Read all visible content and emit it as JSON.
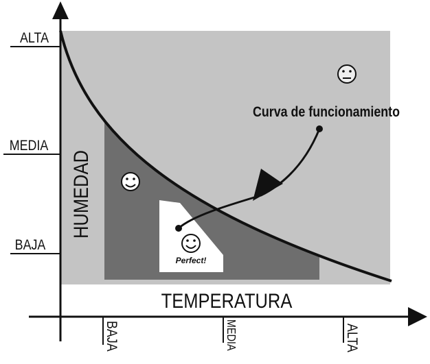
{
  "y_axis": {
    "title": "HUMEDAD",
    "labels": [
      "ALTA",
      "MEDIA",
      "BAJA"
    ]
  },
  "x_axis": {
    "title": "TEMPERATURA",
    "labels": [
      "BAJA",
      "MEDIA",
      "ALTA"
    ]
  },
  "annotation": "Curva de funcionamiento",
  "optimal_label": "Perfect!"
}
